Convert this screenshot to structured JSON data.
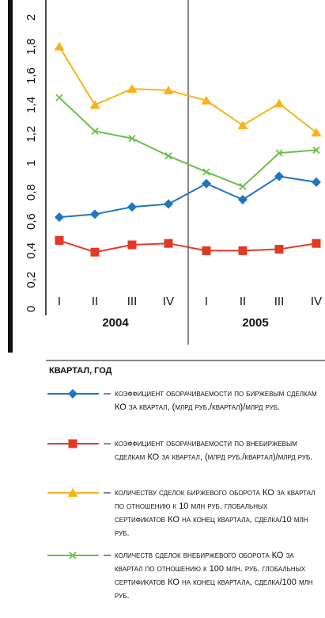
{
  "chart_data": {
    "type": "line",
    "x_label": "КВАРТАЛ, ГОД",
    "categories": [
      "I",
      "II",
      "III",
      "IV",
      "I",
      "II",
      "III",
      "IV"
    ],
    "groups": [
      "2004",
      "2005"
    ],
    "ylim": [
      0,
      2
    ],
    "yticks": [
      0,
      {
        "value": 0.2,
        "label": "0,2"
      },
      {
        "value": 0.4,
        "label": "0,4"
      },
      {
        "value": 0.6,
        "label": "0,6"
      },
      {
        "value": 0.8,
        "label": "0,8"
      },
      1,
      {
        "value": 1.2,
        "label": "1,2"
      },
      {
        "value": 1.4,
        "label": "1,4"
      },
      {
        "value": 1.6,
        "label": "1,6"
      },
      {
        "value": 1.8,
        "label": "1,8"
      },
      2
    ],
    "grid": false,
    "series": [
      {
        "name": "коэффициент оборачиваемости по биржевым сделкам КО за квартал, (млрд руб./квартал)/млрд руб.",
        "color": "#1f74c4",
        "marker": "diamond",
        "values": [
          0.63,
          0.65,
          0.7,
          0.72,
          0.86,
          0.75,
          0.91,
          0.87
        ]
      },
      {
        "name": "коэффициент оборачиваемости по внебиржевым сделкам КО за квартал, (млрд руб./квартал)/млрд руб.",
        "color": "#e03a24",
        "marker": "square",
        "values": [
          0.47,
          0.39,
          0.44,
          0.45,
          0.4,
          0.4,
          0.41,
          0.45
        ]
      },
      {
        "name": "количеству сделок биржевого оборота КО за квартал по отношению к 10 млн руб. глобальных сертификатов КО на конец квартала, сделка/10 млн руб.",
        "color": "#f8b31b",
        "marker": "triangle",
        "values": [
          1.8,
          1.4,
          1.51,
          1.5,
          1.43,
          1.26,
          1.41,
          1.21
        ]
      },
      {
        "name": "количеств сделок внебиржевого оборота КО за квартал по отношению к 100 млн. руб. глобальных сертификатов КО на конец квартала, сделка/100 млн руб.",
        "color": "#6cc04a",
        "marker": "cross",
        "values": [
          1.45,
          1.22,
          1.17,
          1.05,
          0.94,
          0.84,
          1.07,
          1.09
        ]
      }
    ]
  }
}
